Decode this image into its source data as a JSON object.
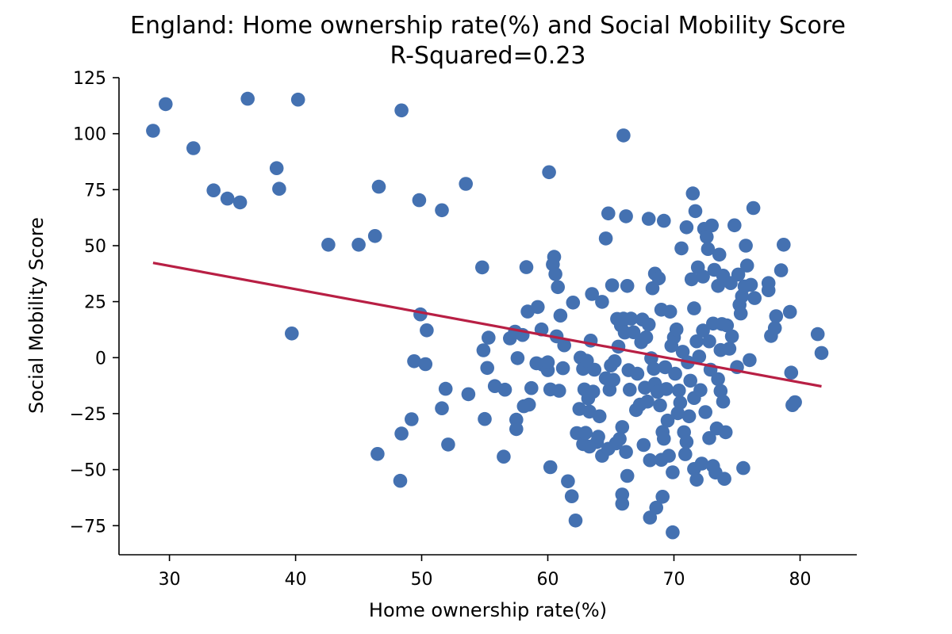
{
  "chart_data": {
    "type": "scatter",
    "title": "England: Home ownership rate(%) and Social Mobility Score",
    "subtitle": "R-Squared=0.23",
    "xlabel": "Home ownership rate(%)",
    "ylabel": "Social Mobility Score",
    "xlim": [
      26,
      84.5
    ],
    "ylim": [
      -88,
      125
    ],
    "x_ticks": [
      30,
      40,
      50,
      60,
      70,
      80
    ],
    "x_tick_labels": [
      "30",
      "40",
      "50",
      "60",
      "70",
      "80"
    ],
    "y_ticks": [
      125,
      100,
      75,
      50,
      25,
      0,
      -25,
      -50,
      -75
    ],
    "y_tick_labels": [
      "125",
      "100",
      "75",
      "50",
      "25",
      "0",
      "−25",
      "−50",
      "−75"
    ],
    "grid": false,
    "point_color": "#4471b1",
    "line_color": "#b81f44",
    "fit_line": {
      "x": [
        28.7,
        81.7
      ],
      "y": [
        42.3,
        -12.8
      ]
    },
    "series": [
      {
        "points": [
          [
            28.7,
            101.3
          ],
          [
            29.7,
            113.2
          ],
          [
            31.9,
            93.5
          ],
          [
            33.5,
            74.7
          ],
          [
            34.6,
            71.0
          ],
          [
            35.6,
            69.3
          ],
          [
            36.2,
            115.6
          ],
          [
            38.5,
            84.6
          ],
          [
            38.7,
            75.4
          ],
          [
            39.7,
            10.8
          ],
          [
            40.2,
            115.2
          ],
          [
            42.6,
            50.4
          ],
          [
            45.0,
            50.4
          ],
          [
            46.3,
            54.3
          ],
          [
            46.6,
            76.3
          ],
          [
            46.5,
            -43.0
          ],
          [
            48.3,
            -55.0
          ],
          [
            48.4,
            -33.9
          ],
          [
            48.4,
            110.4
          ],
          [
            49.2,
            -27.5
          ],
          [
            49.4,
            -1.6
          ],
          [
            49.8,
            70.3
          ],
          [
            49.9,
            19.3
          ],
          [
            50.3,
            -2.9
          ],
          [
            50.4,
            12.2
          ],
          [
            51.6,
            65.8
          ],
          [
            51.6,
            -22.6
          ],
          [
            51.9,
            -13.9
          ],
          [
            52.1,
            -38.8
          ],
          [
            53.5,
            77.6
          ],
          [
            53.7,
            -16.3
          ],
          [
            54.8,
            40.3
          ],
          [
            54.9,
            3.3
          ],
          [
            55.0,
            -27.4
          ],
          [
            55.2,
            -4.6
          ],
          [
            55.3,
            8.9
          ],
          [
            55.8,
            -12.7
          ],
          [
            56.5,
            -44.2
          ],
          [
            56.6,
            -14.3
          ],
          [
            57.0,
            8.6
          ],
          [
            57.4,
            11.6
          ],
          [
            57.5,
            -27.7
          ],
          [
            57.5,
            -31.9
          ],
          [
            57.6,
            -0.2
          ],
          [
            58.0,
            10.1
          ],
          [
            58.1,
            -21.7
          ],
          [
            58.3,
            40.4
          ],
          [
            58.4,
            20.6
          ],
          [
            58.5,
            -21.0
          ],
          [
            58.7,
            -13.6
          ],
          [
            59.1,
            -2.5
          ],
          [
            59.2,
            22.6
          ],
          [
            59.5,
            12.6
          ],
          [
            59.6,
            -3.2
          ],
          [
            60.0,
            -5.6
          ],
          [
            60.0,
            -2.1
          ],
          [
            60.1,
            82.8
          ],
          [
            60.2,
            -48.9
          ],
          [
            60.2,
            -14.2
          ],
          [
            60.4,
            41.6
          ],
          [
            60.5,
            45.0
          ],
          [
            60.6,
            37.3
          ],
          [
            60.7,
            9.5
          ],
          [
            60.8,
            31.5
          ],
          [
            60.9,
            -14.8
          ],
          [
            61.0,
            18.8
          ],
          [
            61.2,
            -4.7
          ],
          [
            61.3,
            5.5
          ],
          [
            61.6,
            -55.2
          ],
          [
            61.9,
            -61.9
          ],
          [
            62.0,
            24.6
          ],
          [
            62.2,
            -72.7
          ],
          [
            62.3,
            -33.7
          ],
          [
            62.5,
            -22.9
          ],
          [
            62.6,
            0.0
          ],
          [
            62.8,
            -38.6
          ],
          [
            62.8,
            -5.0
          ],
          [
            62.9,
            -14.2
          ],
          [
            63.0,
            -33.6
          ],
          [
            63.1,
            -1.4
          ],
          [
            63.2,
            -18.2
          ],
          [
            63.3,
            -39.7
          ],
          [
            63.3,
            -24.1
          ],
          [
            63.4,
            7.6
          ],
          [
            63.5,
            28.4
          ],
          [
            63.6,
            -15.2
          ],
          [
            63.7,
            -5.4
          ],
          [
            63.9,
            -37.7
          ],
          [
            64.0,
            -35.3
          ],
          [
            64.1,
            -26.2
          ],
          [
            64.3,
            24.9
          ],
          [
            64.3,
            -43.8
          ],
          [
            64.6,
            53.2
          ],
          [
            64.6,
            -9.2
          ],
          [
            64.8,
            64.4
          ],
          [
            64.8,
            -40.7
          ],
          [
            64.9,
            -14.3
          ],
          [
            65.0,
            -3.5
          ],
          [
            65.1,
            32.3
          ],
          [
            65.2,
            -9.9
          ],
          [
            65.3,
            -1.6
          ],
          [
            65.4,
            -38.3
          ],
          [
            65.5,
            17.3
          ],
          [
            65.6,
            4.9
          ],
          [
            65.7,
            -36.3
          ],
          [
            65.8,
            14.4
          ],
          [
            65.9,
            -31.0
          ],
          [
            65.9,
            -61.1
          ],
          [
            65.9,
            -65.2
          ],
          [
            66.0,
            99.2
          ],
          [
            66.0,
            17.4
          ],
          [
            66.1,
            11.2
          ],
          [
            66.2,
            -42.1
          ],
          [
            66.2,
            63.1
          ],
          [
            66.3,
            -52.8
          ],
          [
            66.3,
            32.0
          ],
          [
            66.4,
            -5.6
          ],
          [
            66.5,
            -14.3
          ],
          [
            66.6,
            17.4
          ],
          [
            66.8,
            11.3
          ],
          [
            67.0,
            -23.4
          ],
          [
            67.1,
            -7.2
          ],
          [
            67.3,
            -21.0
          ],
          [
            67.4,
            6.9
          ],
          [
            67.5,
            17.0
          ],
          [
            67.6,
            -39.0
          ],
          [
            67.7,
            -13.4
          ],
          [
            67.8,
            9.1
          ],
          [
            67.9,
            -19.6
          ],
          [
            68.0,
            14.8
          ],
          [
            68.0,
            62.0
          ],
          [
            68.1,
            -45.8
          ],
          [
            68.1,
            -71.4
          ],
          [
            68.2,
            -0.3
          ],
          [
            68.3,
            31.0
          ],
          [
            68.4,
            -5.0
          ],
          [
            68.5,
            -11.7
          ],
          [
            68.5,
            37.5
          ],
          [
            68.6,
            -67.0
          ],
          [
            68.7,
            -15.3
          ],
          [
            68.8,
            35.4
          ],
          [
            68.9,
            -21.3
          ],
          [
            69.0,
            -45.6
          ],
          [
            69.0,
            21.4
          ],
          [
            69.1,
            -33.2
          ],
          [
            69.1,
            -62.1
          ],
          [
            69.2,
            61.1
          ],
          [
            69.2,
            -36.2
          ],
          [
            69.3,
            -4.3
          ],
          [
            69.4,
            -14.0
          ],
          [
            69.5,
            -28.1
          ],
          [
            69.6,
            -43.8
          ],
          [
            69.7,
            20.5
          ],
          [
            69.8,
            5.3
          ],
          [
            69.9,
            -78.0
          ],
          [
            69.9,
            -51.2
          ],
          [
            70.0,
            9.0
          ],
          [
            70.1,
            -7.2
          ],
          [
            70.2,
            12.6
          ],
          [
            70.3,
            -24.8
          ],
          [
            70.4,
            -14.7
          ],
          [
            70.5,
            -20.1
          ],
          [
            70.6,
            48.8
          ],
          [
            70.7,
            2.6
          ],
          [
            70.8,
            -33.3
          ],
          [
            70.9,
            -43.1
          ],
          [
            71.0,
            58.2
          ],
          [
            71.0,
            -37.6
          ],
          [
            71.1,
            -2.1
          ],
          [
            71.2,
            -26.2
          ],
          [
            71.3,
            -10.3
          ],
          [
            71.4,
            35.0
          ],
          [
            71.5,
            73.3
          ],
          [
            71.6,
            -49.7
          ],
          [
            71.6,
            -18.0
          ],
          [
            71.6,
            22.0
          ],
          [
            71.7,
            65.4
          ],
          [
            71.8,
            -54.5
          ],
          [
            71.8,
            7.3
          ],
          [
            71.9,
            40.3
          ],
          [
            72.0,
            0.5
          ],
          [
            72.1,
            -14.5
          ],
          [
            72.2,
            -47.3
          ],
          [
            72.3,
            36.2
          ],
          [
            72.3,
            12.1
          ],
          [
            72.4,
            57.5
          ],
          [
            72.5,
            -24.3
          ],
          [
            72.6,
            53.9
          ],
          [
            72.7,
            48.5
          ],
          [
            72.8,
            -35.9
          ],
          [
            72.8,
            7.3
          ],
          [
            72.9,
            -5.4
          ],
          [
            73.0,
            59.0
          ],
          [
            73.1,
            -48.4
          ],
          [
            73.1,
            15.2
          ],
          [
            73.2,
            39.2
          ],
          [
            73.3,
            -51.3
          ],
          [
            73.4,
            -31.6
          ],
          [
            73.5,
            -9.6
          ],
          [
            73.5,
            32.0
          ],
          [
            73.6,
            46.0
          ],
          [
            73.7,
            -14.9
          ],
          [
            73.7,
            3.4
          ],
          [
            73.8,
            15.0
          ],
          [
            73.9,
            -19.6
          ],
          [
            73.9,
            36.6
          ],
          [
            74.0,
            -54.1
          ],
          [
            74.1,
            -33.3
          ],
          [
            74.2,
            14.4
          ],
          [
            74.4,
            4.0
          ],
          [
            74.5,
            33.3
          ],
          [
            74.6,
            9.5
          ],
          [
            74.8,
            59.1
          ],
          [
            75.0,
            -4.2
          ],
          [
            75.1,
            37.1
          ],
          [
            75.2,
            23.6
          ],
          [
            75.3,
            19.7
          ],
          [
            75.4,
            27.4
          ],
          [
            75.5,
            -49.3
          ],
          [
            75.6,
            31.8
          ],
          [
            75.7,
            50.0
          ],
          [
            75.8,
            41.1
          ],
          [
            76.0,
            -1.1
          ],
          [
            76.1,
            32.5
          ],
          [
            76.3,
            66.8
          ],
          [
            76.4,
            26.6
          ],
          [
            77.5,
            33.3
          ],
          [
            77.5,
            30.1
          ],
          [
            77.7,
            9.7
          ],
          [
            78.0,
            13.2
          ],
          [
            78.1,
            18.5
          ],
          [
            78.5,
            39.0
          ],
          [
            78.7,
            50.4
          ],
          [
            79.2,
            20.4
          ],
          [
            79.3,
            -6.7
          ],
          [
            79.4,
            -21.2
          ],
          [
            79.6,
            -19.9
          ],
          [
            81.4,
            10.5
          ],
          [
            81.7,
            2.1
          ]
        ]
      }
    ]
  }
}
